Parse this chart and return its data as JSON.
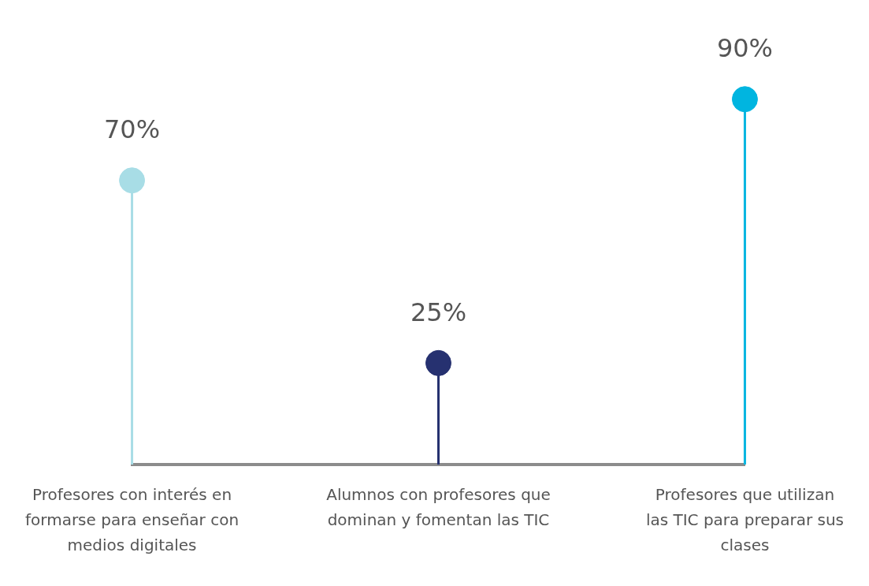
{
  "chart_data": {
    "type": "lollipop",
    "categories": [
      "Profesores con interés en formarse para enseñar con medios digitales",
      "Alumnos con profesores que dominan y fomentan las TIC",
      "Profesores que utilizan las TIC para preparar sus clases"
    ],
    "values": [
      70,
      25,
      90
    ],
    "colors": [
      "#a8dde6",
      "#263170",
      "#00b5e0"
    ],
    "value_labels": [
      "70%",
      "25%",
      "90%"
    ],
    "grid": false,
    "legend": false
  }
}
